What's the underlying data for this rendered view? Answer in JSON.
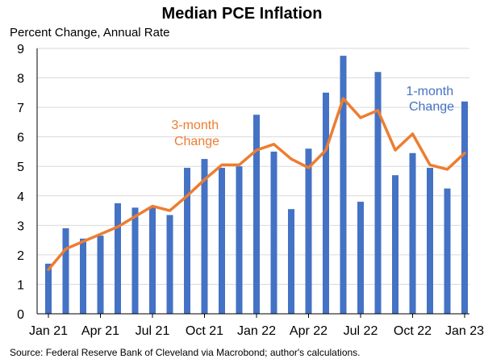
{
  "chart_data": {
    "type": "bar+line",
    "title": "Median PCE Inflation",
    "subtitle": "Percent Change, Annual Rate",
    "source": "Source: Federal Reserve Bank of Cleveland via Macrobond; author's calculations.",
    "ylim": [
      0,
      9
    ],
    "yticks": [
      "0",
      "1",
      "2",
      "3",
      "4",
      "5",
      "6",
      "7",
      "8",
      "9"
    ],
    "x_tick_labels": [
      "Jan 21",
      "Apr 21",
      "Jul 21",
      "Oct 21",
      "Jan 22",
      "Apr 22",
      "Jul 22",
      "Oct 22",
      "Jan 23"
    ],
    "categories": [
      "2021-01",
      "2021-02",
      "2021-03",
      "2021-04",
      "2021-05",
      "2021-06",
      "2021-07",
      "2021-08",
      "2021-09",
      "2021-10",
      "2021-11",
      "2021-12",
      "2022-01",
      "2022-02",
      "2022-03",
      "2022-04",
      "2022-05",
      "2022-06",
      "2022-07",
      "2022-08",
      "2022-09",
      "2022-10",
      "2022-11",
      "2022-12",
      "2023-01"
    ],
    "series": [
      {
        "name": "1-month Change",
        "kind": "bar",
        "color": "#4472C4",
        "values": [
          1.7,
          2.9,
          2.55,
          2.65,
          3.75,
          3.6,
          3.6,
          3.35,
          4.95,
          5.25,
          4.95,
          5.0,
          6.75,
          5.5,
          3.55,
          5.6,
          7.5,
          8.75,
          3.8,
          8.2,
          4.7,
          5.45,
          4.95,
          4.25,
          7.2
        ]
      },
      {
        "name": "3-month Change",
        "kind": "line",
        "color": "#ED7D31",
        "values": [
          1.5,
          2.2,
          2.45,
          2.7,
          2.95,
          3.3,
          3.65,
          3.5,
          4.0,
          4.55,
          5.05,
          5.05,
          5.55,
          5.75,
          5.25,
          4.95,
          5.55,
          7.3,
          6.65,
          6.9,
          5.55,
          6.1,
          5.05,
          4.9,
          5.45
        ]
      }
    ],
    "annotations": [
      {
        "series": "1-month Change",
        "lines": [
          "1-month",
          "Change"
        ]
      },
      {
        "series": "3-month Change",
        "lines": [
          "3-month",
          "Change"
        ]
      }
    ]
  }
}
